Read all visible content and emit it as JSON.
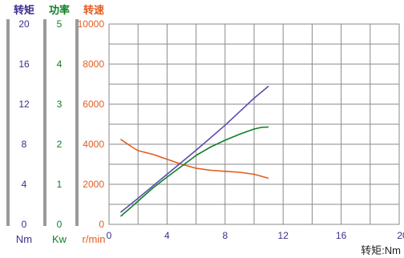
{
  "chart_data": {
    "type": "line",
    "title": "",
    "xlabel": "转矩:Nm",
    "x_ticks": [
      "0",
      "4",
      "8",
      "12",
      "16",
      "20"
    ],
    "xlim": [
      0,
      20
    ],
    "axes": [
      {
        "id": "torque",
        "title": "转矩",
        "unit": "Nm",
        "color": "#3b2f8c",
        "ylim": [
          0,
          20
        ],
        "ticks": [
          "20",
          "16",
          "12",
          "8",
          "4",
          "0"
        ]
      },
      {
        "id": "power",
        "title": "功率",
        "unit": "Kw",
        "color": "#0f7f26",
        "ylim": [
          0,
          5
        ],
        "ticks": [
          "5",
          "4",
          "3",
          "2",
          "1",
          "0"
        ]
      },
      {
        "id": "speed",
        "title": "转速",
        "unit": "r/min",
        "color": "#e65a1e",
        "ylim": [
          0,
          10000
        ],
        "ticks": [
          "10000",
          "8000",
          "6000",
          "4000",
          "2000",
          "0"
        ]
      }
    ],
    "grid": true,
    "series": [
      {
        "axis": "speed",
        "color": "#e65a1e",
        "x": [
          0.8,
          1.5,
          2,
          3,
          4,
          5,
          6,
          7,
          8,
          9,
          10,
          11
        ],
        "y": [
          4250,
          3900,
          3680,
          3500,
          3250,
          3000,
          2800,
          2700,
          2650,
          2600,
          2500,
          2300
        ]
      },
      {
        "axis": "power",
        "color": "#0f7f26",
        "x": [
          0.8,
          1.5,
          2,
          3,
          4,
          5,
          6,
          7,
          8,
          9,
          10,
          10.5,
          11
        ],
        "y": [
          0.2,
          0.42,
          0.58,
          0.9,
          1.18,
          1.45,
          1.72,
          1.93,
          2.1,
          2.25,
          2.38,
          2.42,
          2.43
        ]
      },
      {
        "axis": "torque",
        "color": "#5b4bb0",
        "x": [
          0.8,
          2,
          4,
          6,
          8,
          10,
          11
        ],
        "y": [
          1.2,
          2.6,
          5.0,
          7.4,
          9.9,
          12.6,
          13.8
        ]
      }
    ]
  }
}
